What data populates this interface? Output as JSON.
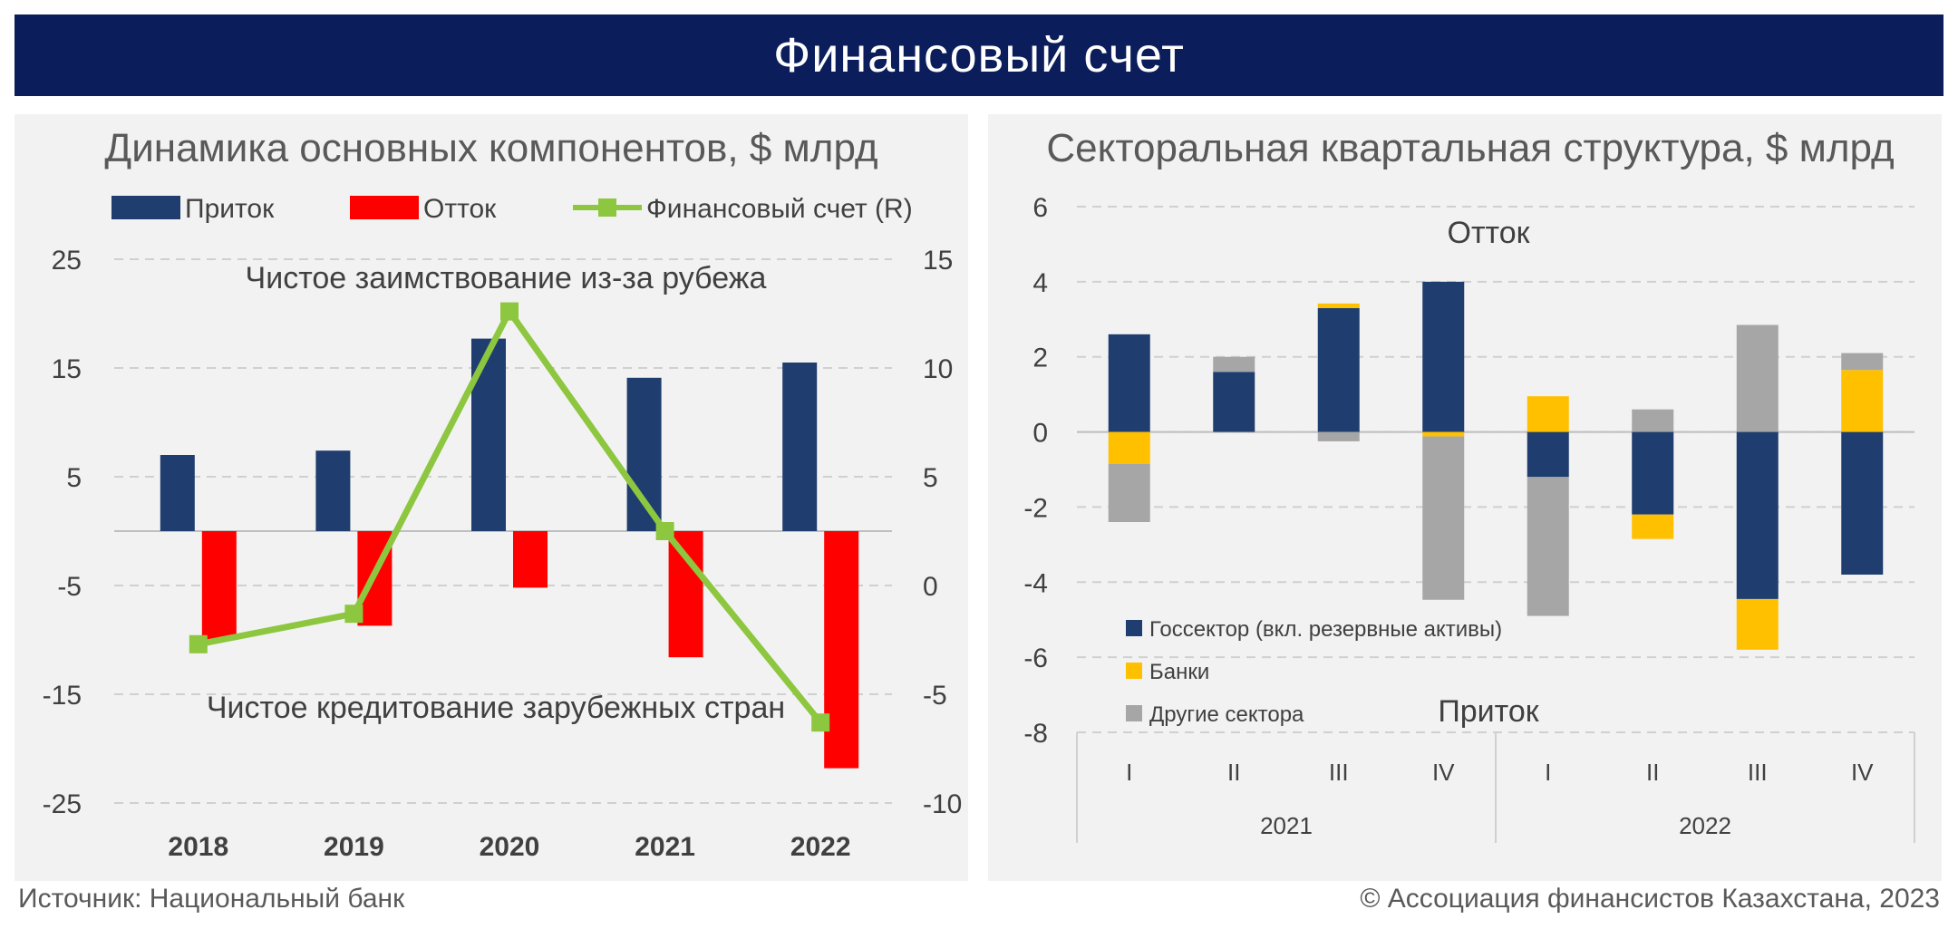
{
  "header": {
    "title": "Финансовый счет"
  },
  "footer": {
    "source": "Источник: Национальный банк",
    "copyright": "© Ассоциация финансистов Казахстана, 2023"
  },
  "colors": {
    "banner": "#0b1e5b",
    "navy": "#1f3d6e",
    "red": "#ff0000",
    "green": "#8dc63f",
    "yellow": "#ffc000",
    "gray": "#a6a6a6"
  },
  "chart_data": [
    {
      "type": "bar",
      "title": "Динамика основных компонентов, $ млрд",
      "categories": [
        "2018",
        "2019",
        "2020",
        "2021",
        "2022"
      ],
      "series": [
        {
          "name": "Приток",
          "axis": "left",
          "color": "#1f3d6e",
          "values": [
            7.0,
            7.4,
            17.7,
            14.1,
            15.5
          ]
        },
        {
          "name": "Отток",
          "axis": "left",
          "color": "#ff0000",
          "values": [
            -10.0,
            -8.7,
            -5.2,
            -11.6,
            -21.8
          ]
        },
        {
          "name": "Финансовый счет (R)",
          "axis": "right",
          "type": "line",
          "color": "#8dc63f",
          "values": [
            -2.7,
            -1.3,
            12.6,
            2.5,
            -6.3
          ]
        }
      ],
      "ylim_left": [
        -25,
        25
      ],
      "yticks_left": [
        "25",
        "15",
        "5",
        "-5",
        "-15",
        "-25"
      ],
      "ylim_right": [
        -10,
        15
      ],
      "yticks_right": [
        "15",
        "10",
        "5",
        "0",
        "-5",
        "-10"
      ],
      "annotations": [
        "Чистое заимствование из-за рубежа",
        "Чистое кредитование зарубежных стран"
      ],
      "grid": true,
      "legend": "top"
    },
    {
      "type": "bar",
      "stacked": true,
      "title": "Секторальная квартальная структура, $ млрд",
      "categories": [
        "I",
        "II",
        "III",
        "IV",
        "I",
        "II",
        "III",
        "IV"
      ],
      "groups": [
        "2021",
        "2022"
      ],
      "series": [
        {
          "name": "Госсектор (вкл. резервные активы)",
          "color": "#1f3d6e",
          "values": [
            2.6,
            1.6,
            3.3,
            4.0,
            -1.2,
            -2.2,
            -4.45,
            -3.8
          ]
        },
        {
          "name": "Банки",
          "color": "#ffc000",
          "values": [
            -0.85,
            0.0,
            0.12,
            -0.12,
            0.95,
            -0.65,
            -1.35,
            1.65
          ]
        },
        {
          "name": "Другие сектора",
          "color": "#a6a6a6",
          "values": [
            -1.55,
            0.4,
            -0.25,
            -4.35,
            -3.7,
            0.6,
            2.85,
            0.45
          ]
        }
      ],
      "ylim": [
        -8,
        6
      ],
      "yticks": [
        "6",
        "4",
        "2",
        "0",
        "-2",
        "-4",
        "-6",
        "-8"
      ],
      "annotations": [
        "Отток",
        "Приток"
      ],
      "grid": true,
      "legend": "bottom-left"
    }
  ]
}
